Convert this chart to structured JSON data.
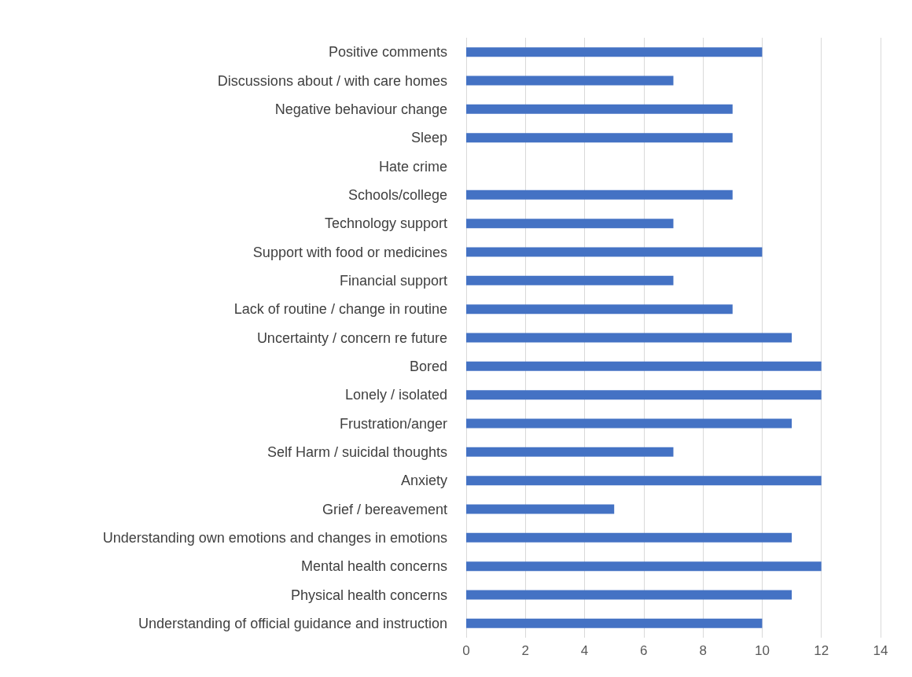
{
  "chart_data": {
    "type": "bar",
    "orientation": "horizontal",
    "categories": [
      "Positive comments",
      "Discussions about / with care homes",
      "Negative behaviour change",
      "Sleep",
      "Hate crime",
      "Schools/college",
      "Technology support",
      "Support with food or medicines",
      "Financial support",
      "Lack of routine / change in routine",
      "Uncertainty / concern re future",
      "Bored",
      "Lonely / isolated",
      "Frustration/anger",
      "Self Harm / suicidal thoughts",
      "Anxiety",
      "Grief / bereavement",
      "Understanding own emotions and changes in emotions",
      "Mental health concerns",
      "Physical health concerns",
      "Understanding of official guidance and instruction"
    ],
    "values": [
      10,
      7,
      9,
      9,
      0,
      9,
      7,
      10,
      7,
      9,
      11,
      12,
      12,
      11,
      7,
      12,
      5,
      11,
      12,
      11,
      10
    ],
    "color": "#4472c4",
    "xlim": [
      0,
      14
    ],
    "xticks": [
      0,
      2,
      4,
      6,
      8,
      10,
      12,
      14
    ],
    "grid": "x"
  }
}
